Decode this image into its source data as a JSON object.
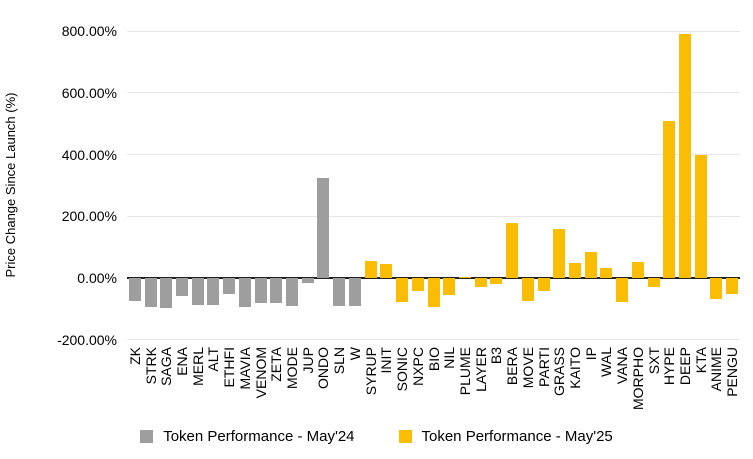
{
  "chart_data": {
    "type": "bar",
    "title": "",
    "xlabel": "",
    "ylabel": "Price Change Since Launch (%)",
    "ylim": [
      -200,
      800
    ],
    "grid": true,
    "legend_position": "bottom",
    "yticks": [
      {
        "value": 800,
        "label": "800.00%"
      },
      {
        "value": 600,
        "label": "600.00%"
      },
      {
        "value": 400,
        "label": "400.00%"
      },
      {
        "value": 200,
        "label": "200.00%"
      },
      {
        "value": 0,
        "label": "0.00%"
      },
      {
        "value": -200,
        "label": "-200.00%"
      }
    ],
    "categories": [
      "ZK",
      "STRK",
      "SAGA",
      "ENA",
      "MERL",
      "ALT",
      "ETHFI",
      "MAVIA",
      "VENOM",
      "ZETA",
      "MODE",
      "JUP",
      "ONDO",
      "SLN",
      "W",
      "SYRUP",
      "INIT",
      "SONIC",
      "NXPC",
      "BIO",
      "NIL",
      "PLUME",
      "LAYER",
      "B3",
      "BERA",
      "MOVE",
      "PARTI",
      "GRASS",
      "KAITO",
      "IP",
      "WAL",
      "VANA",
      "MORPHO",
      "SXT",
      "HYPE",
      "DEEP",
      "KTA",
      "ANIME",
      "PENGU"
    ],
    "series": [
      {
        "name": "Token Performance - May'24",
        "color": "#9e9e9e",
        "values": [
          -75,
          -93,
          -95,
          -57,
          -88,
          -88,
          -52,
          -93,
          -80,
          -80,
          -90,
          -17,
          325,
          -90,
          -90,
          null,
          null,
          null,
          null,
          null,
          null,
          null,
          null,
          null,
          null,
          null,
          null,
          null,
          null,
          null,
          null,
          null,
          null,
          null,
          null,
          null,
          null,
          null,
          null
        ]
      },
      {
        "name": "Token Performance - May'25",
        "color": "#fbbc04",
        "values": [
          null,
          null,
          null,
          null,
          null,
          null,
          null,
          null,
          null,
          null,
          null,
          null,
          null,
          null,
          null,
          57,
          45,
          -76,
          -40,
          -92,
          -53,
          4,
          -29,
          -20,
          178,
          -75,
          -43,
          160,
          50,
          84,
          32,
          -78,
          54,
          -27,
          510,
          790,
          400,
          -68,
          -51
        ]
      }
    ]
  }
}
